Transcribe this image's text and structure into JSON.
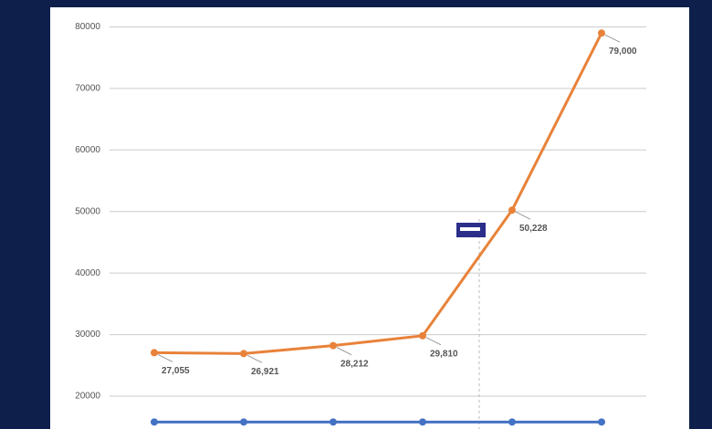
{
  "chart_data": {
    "type": "line",
    "categories": [
      null,
      null,
      null,
      null,
      null,
      null
    ],
    "series": [
      {
        "color": "#e8823a",
        "values": [
          27055,
          26921,
          28212,
          29810,
          50228,
          79000
        ],
        "value_labels": [
          "27,055",
          "26,921",
          "28,212",
          "29,810",
          "50,228",
          "79,000"
        ]
      },
      {
        "color": "#4472c4",
        "values": [
          15800,
          15800,
          15800,
          15800,
          15800,
          15800
        ]
      }
    ],
    "ylim": [
      14660,
      84370
    ],
    "yticks": [
      20000,
      30000,
      40000,
      50000,
      60000,
      70000,
      80000
    ],
    "grid": true
  }
}
